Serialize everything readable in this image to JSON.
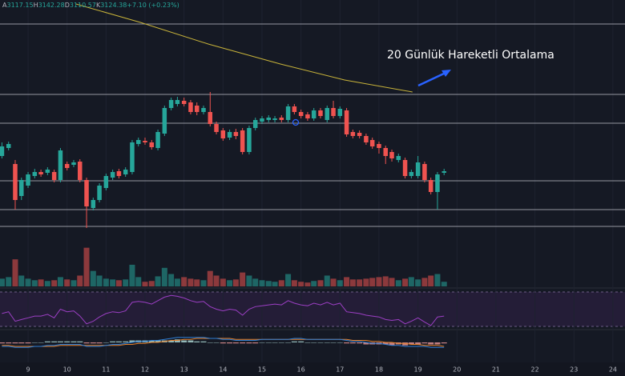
{
  "chart_data": {
    "type": "candlestick",
    "header": {
      "items": [
        {
          "key": "A",
          "value": "3117.15"
        },
        {
          "key": "H",
          "value": "3142.28"
        },
        {
          "key": "D",
          "value": "3110.57"
        },
        {
          "key": "K",
          "value": "3124.38"
        }
      ],
      "change": "+7.10 (+0.23%)"
    },
    "annotation": "20 Günlük Hareketli Ortalama",
    "colors": {
      "up": "#26a69a",
      "down": "#ef5350"
    },
    "xlim": [
      8.28,
      24.31
    ],
    "ylim": [
      2956,
      3556
    ],
    "xticks": [
      9,
      10,
      11,
      12,
      13,
      14,
      15,
      16,
      17,
      18,
      19,
      20,
      21,
      22,
      23,
      24
    ],
    "grid": true,
    "x": [
      8.33,
      8.5,
      8.67,
      8.83,
      9,
      9.17,
      9.33,
      9.5,
      9.67,
      9.83,
      10,
      10.17,
      10.33,
      10.5,
      10.67,
      10.83,
      11,
      11.17,
      11.33,
      11.5,
      11.67,
      11.83,
      12,
      12.17,
      12.33,
      12.5,
      12.67,
      12.83,
      13,
      13.17,
      13.33,
      13.5,
      13.67,
      13.83,
      14,
      14.17,
      14.33,
      14.5,
      14.67,
      14.83,
      15,
      15.17,
      15.33,
      15.5,
      15.67,
      15.83,
      16,
      16.17,
      16.33,
      16.5,
      16.67,
      16.83,
      17,
      17.17,
      17.33,
      17.5,
      17.67,
      17.83,
      18,
      18.17,
      18.33,
      18.5,
      18.67,
      18.83,
      19,
      19.17,
      19.33,
      19.5,
      19.67
    ],
    "open": [
      3166,
      3186,
      3146,
      3066,
      3092,
      3116,
      3126,
      3124,
      3126,
      3106,
      3146,
      3144,
      3152,
      3106,
      3036,
      3056,
      3086,
      3112,
      3128,
      3120,
      3126,
      3196,
      3204,
      3200,
      3186,
      3222,
      3286,
      3296,
      3304,
      3300,
      3292,
      3276,
      3276,
      3246,
      3230,
      3212,
      3226,
      3230,
      3176,
      3236,
      3252,
      3256,
      3256,
      3262,
      3256,
      3290,
      3276,
      3270,
      3260,
      3280,
      3256,
      3286,
      3266,
      3280,
      3226,
      3224,
      3216,
      3206,
      3196,
      3186,
      3176,
      3156,
      3156,
      3116,
      3116,
      3146,
      3106,
      3076,
      3124
    ],
    "high": [
      3200,
      3202,
      3156,
      3112,
      3126,
      3134,
      3132,
      3138,
      3132,
      3186,
      3152,
      3156,
      3158,
      3112,
      3062,
      3098,
      3122,
      3132,
      3134,
      3138,
      3206,
      3212,
      3212,
      3206,
      3232,
      3292,
      3312,
      3314,
      3312,
      3306,
      3300,
      3292,
      3326,
      3252,
      3236,
      3232,
      3234,
      3236,
      3242,
      3262,
      3266,
      3268,
      3266,
      3268,
      3296,
      3296,
      3282,
      3276,
      3286,
      3286,
      3292,
      3304,
      3290,
      3286,
      3232,
      3230,
      3222,
      3212,
      3202,
      3192,
      3182,
      3172,
      3162,
      3132,
      3166,
      3152,
      3112,
      3126,
      3134
    ],
    "low": [
      3160,
      3180,
      3032,
      3056,
      3086,
      3110,
      3114,
      3118,
      3100,
      3100,
      3130,
      3138,
      3100,
      2986,
      3030,
      3050,
      3080,
      3106,
      3110,
      3114,
      3120,
      3190,
      3194,
      3182,
      3180,
      3216,
      3280,
      3290,
      3290,
      3270,
      3268,
      3270,
      3240,
      3220,
      3204,
      3206,
      3208,
      3170,
      3170,
      3230,
      3246,
      3250,
      3250,
      3250,
      3250,
      3270,
      3260,
      3254,
      3254,
      3260,
      3250,
      3260,
      3260,
      3214,
      3210,
      3210,
      3194,
      3184,
      3172,
      3146,
      3152,
      3150,
      3110,
      3110,
      3110,
      3100,
      3070,
      3032,
      3118
    ],
    "close": [
      3190,
      3196,
      3056,
      3106,
      3120,
      3126,
      3120,
      3132,
      3106,
      3180,
      3136,
      3150,
      3106,
      3040,
      3056,
      3092,
      3116,
      3126,
      3116,
      3132,
      3200,
      3206,
      3200,
      3188,
      3226,
      3286,
      3306,
      3306,
      3296,
      3276,
      3276,
      3286,
      3246,
      3226,
      3210,
      3226,
      3216,
      3176,
      3236,
      3256,
      3260,
      3262,
      3260,
      3256,
      3290,
      3276,
      3266,
      3260,
      3280,
      3266,
      3286,
      3266,
      3284,
      3220,
      3216,
      3216,
      3200,
      3190,
      3186,
      3166,
      3160,
      3166,
      3116,
      3126,
      3150,
      3106,
      3076,
      3120,
      3128
    ],
    "hlines": [
      3496,
      3320,
      3248,
      3104,
      3032,
      2990
    ],
    "ma": {
      "color": "#c9b43a",
      "x": [
        10.23,
        11.88,
        13.62,
        15.47,
        17.12,
        18.86
      ],
      "values": [
        3546,
        3500,
        3446,
        3396,
        3356,
        3326
      ]
    },
    "volume": {
      "ylim": [
        0,
        60
      ],
      "values": [
        10,
        12,
        35,
        14,
        10,
        8,
        9,
        7,
        8,
        12,
        9,
        8,
        14,
        50,
        20,
        14,
        10,
        9,
        8,
        9,
        28,
        12,
        6,
        7,
        13,
        24,
        16,
        10,
        12,
        10,
        9,
        8,
        20,
        14,
        10,
        8,
        9,
        18,
        14,
        10,
        8,
        7,
        6,
        8,
        16,
        8,
        6,
        5,
        7,
        8,
        14,
        10,
        8,
        12,
        9,
        9,
        10,
        11,
        12,
        13,
        11,
        8,
        10,
        12,
        9,
        11,
        14,
        16,
        6
      ]
    },
    "rsi": {
      "color": "#9c3fc4",
      "ylim": [
        30,
        70
      ],
      "values": [
        45,
        47,
        36,
        38,
        40,
        42,
        42,
        44,
        40,
        50,
        47,
        48,
        42,
        33,
        36,
        41,
        45,
        47,
        46,
        48,
        58,
        59,
        58,
        56,
        60,
        64,
        66,
        65,
        63,
        60,
        58,
        59,
        53,
        50,
        48,
        50,
        49,
        43,
        50,
        53,
        54,
        55,
        56,
        55,
        60,
        57,
        55,
        54,
        57,
        55,
        58,
        55,
        57,
        47,
        46,
        45,
        43,
        42,
        41,
        38,
        37,
        38,
        33,
        36,
        40,
        35,
        31,
        41,
        42
      ]
    },
    "macd": {
      "ylim": [
        -8,
        8
      ],
      "macd_color": "#2e7fd6",
      "signal_color": "#e8822c",
      "macd": [
        -4,
        -4,
        -5,
        -5,
        -5,
        -4,
        -4,
        -3,
        -3,
        -2,
        -2,
        -2,
        -2,
        -4,
        -4,
        -4,
        -3,
        -2,
        -2,
        -1,
        0,
        1,
        1,
        2,
        2,
        3,
        4,
        5,
        5,
        5,
        5,
        5,
        4,
        4,
        3,
        3,
        2,
        2,
        2,
        2,
        3,
        3,
        3,
        3,
        3,
        4,
        4,
        3,
        3,
        3,
        3,
        3,
        3,
        2,
        1,
        1,
        0,
        -1,
        -1,
        -2,
        -3,
        -3,
        -4,
        -4,
        -4,
        -4,
        -5,
        -5,
        -5
      ],
      "signal": [
        -3,
        -3,
        -4,
        -4,
        -4,
        -4,
        -4,
        -4,
        -4,
        -3,
        -3,
        -3,
        -3,
        -3,
        -3,
        -3,
        -3,
        -3,
        -3,
        -2,
        -2,
        -1,
        -1,
        0,
        0,
        1,
        2,
        2,
        3,
        3,
        4,
        4,
        4,
        4,
        4,
        4,
        3,
        3,
        3,
        3,
        3,
        3,
        3,
        3,
        3,
        3,
        3,
        3,
        3,
        3,
        3,
        3,
        3,
        3,
        2,
        2,
        2,
        1,
        1,
        0,
        0,
        -1,
        -1,
        -2,
        -2,
        -3,
        -3,
        -3,
        -4
      ],
      "hist": [
        -1,
        -1,
        -1,
        -1,
        -1,
        0,
        0,
        1,
        1,
        1,
        1,
        1,
        1,
        -1,
        -1,
        -1,
        0,
        1,
        1,
        1,
        2,
        2,
        2,
        2,
        2,
        2,
        2,
        3,
        2,
        2,
        1,
        1,
        0,
        0,
        -1,
        -1,
        -1,
        -1,
        -1,
        -1,
        0,
        0,
        0,
        0,
        0,
        1,
        1,
        0,
        0,
        0,
        0,
        0,
        0,
        -1,
        -1,
        -1,
        -2,
        -2,
        -2,
        -2,
        -3,
        -2,
        -3,
        -2,
        -2,
        -1,
        -2,
        -2,
        -1
      ]
    }
  }
}
